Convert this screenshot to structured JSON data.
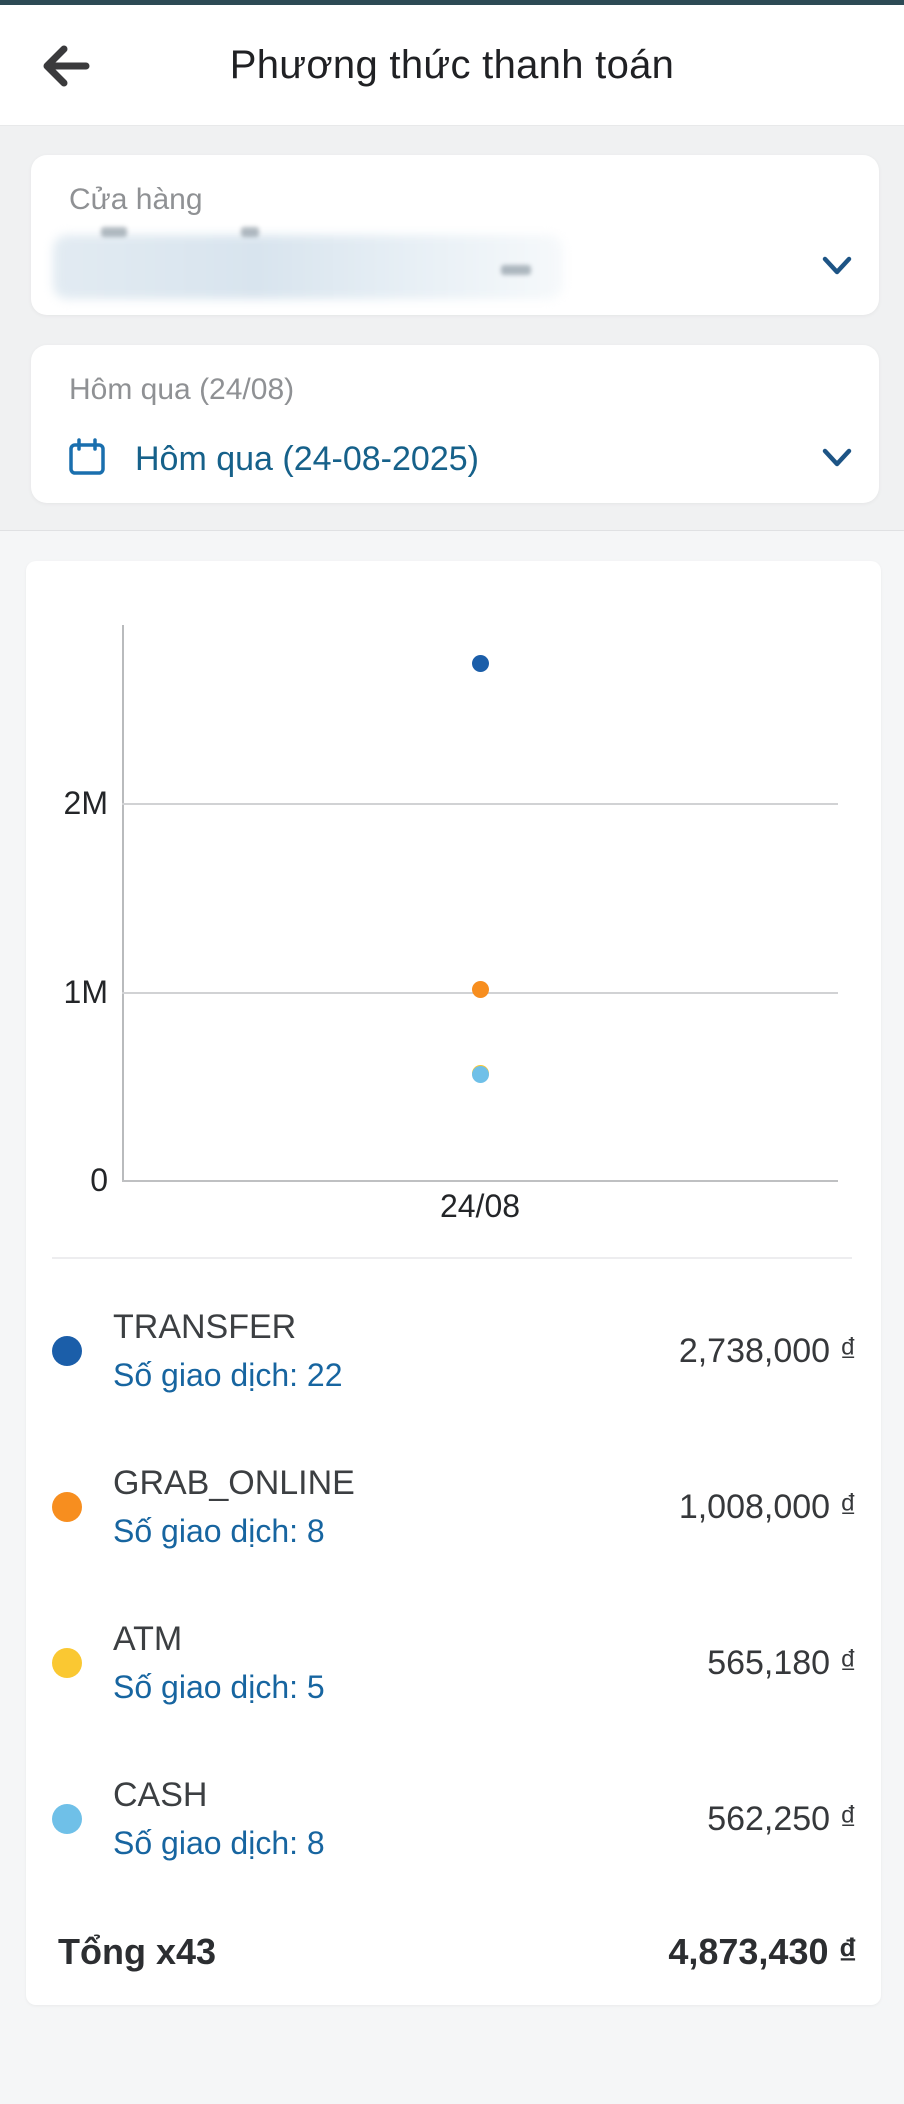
{
  "status_bar": {
    "color": "#2d4a55"
  },
  "header": {
    "title": "Phương thức thanh toán",
    "icons": {
      "back": "arrow-left-icon"
    }
  },
  "filters": {
    "store": {
      "label": "Cửa hàng",
      "value": "",
      "redacted": true,
      "icon": "chevron-down-icon"
    },
    "date": {
      "label": "Hôm qua (24/08)",
      "value": "Hôm qua (24-08-2025)",
      "icons": {
        "left": "calendar-icon",
        "right": "chevron-down-icon"
      }
    }
  },
  "chart_data": {
    "type": "scatter",
    "title": "",
    "xlabel": "",
    "ylabel": "",
    "x_categories": [
      "24/08"
    ],
    "series": [
      {
        "name": "TRANSFER",
        "values": [
          2738000
        ],
        "color": "#1b5ea9"
      },
      {
        "name": "GRAB_ONLINE",
        "values": [
          1008000
        ],
        "color": "#f78e1f"
      },
      {
        "name": "ATM",
        "values": [
          565180
        ],
        "color": "#fac832"
      },
      {
        "name": "CASH",
        "values": [
          562250
        ],
        "color": "#6fc0e8"
      }
    ],
    "y_ticks": [
      {
        "label": "2M",
        "value": 2000000
      },
      {
        "label": "1M",
        "value": 1000000
      },
      {
        "label": "0",
        "value": 0
      }
    ],
    "ylim": [
      0,
      2950000
    ],
    "grid": true,
    "legend_position": "list-below"
  },
  "legend": [
    {
      "name": "TRANSFER",
      "count_label": "Số giao dịch: 22",
      "amount": "2,738,000",
      "color": "#1b5ea9"
    },
    {
      "name": "GRAB_ONLINE",
      "count_label": "Số giao dịch: 8",
      "amount": "1,008,000",
      "color": "#f78e1f"
    },
    {
      "name": "ATM",
      "count_label": "Số giao dịch: 5",
      "amount": "565,180",
      "color": "#fac832"
    },
    {
      "name": "CASH",
      "count_label": "Số giao dịch: 8",
      "amount": "562,250",
      "color": "#6fc0e8"
    }
  ],
  "total": {
    "label": "Tổng x43",
    "amount": "4,873,430"
  },
  "currency": "₫",
  "colors": {
    "accent_blue": "#1765a0",
    "date_blue": "#16618a",
    "icon_blue": "#1a6fae",
    "chevron_blue": "#1d5485"
  }
}
